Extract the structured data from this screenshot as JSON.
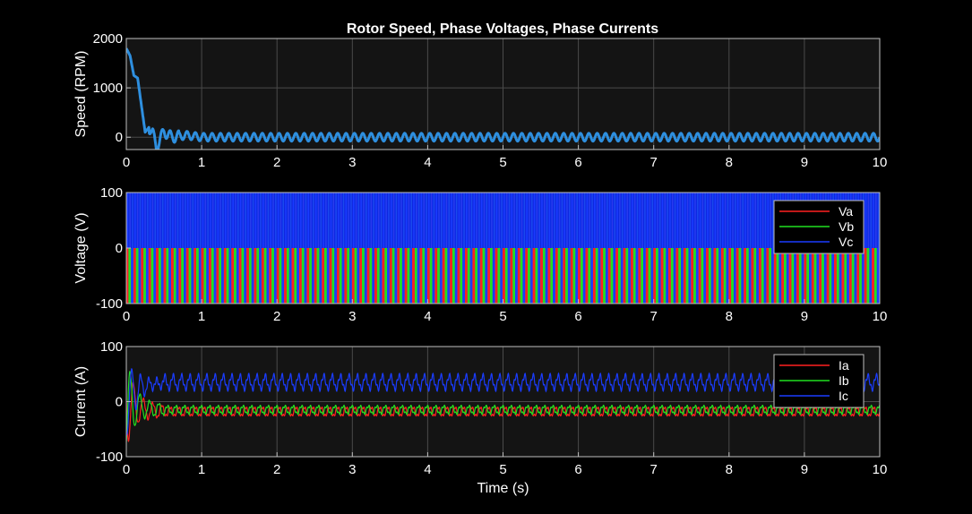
{
  "figure": {
    "title": "Rotor Speed, Phase Voltages, Phase Currents",
    "background": "#000000",
    "axes_background": "#141414",
    "axes_color": "#bfbfbf",
    "grid_color": "#4a4a4a"
  },
  "chart_data": [
    {
      "type": "line",
      "title": "Rotor Speed, Phase Voltages, Phase Currents",
      "xlabel": "",
      "ylabel": "Speed (RPM)",
      "xlim": [
        0,
        10
      ],
      "ylim": [
        -250,
        2000
      ],
      "xticks": [
        0,
        1,
        2,
        3,
        4,
        5,
        6,
        7,
        8,
        9,
        10
      ],
      "yticks": [
        0,
        1000,
        2000
      ],
      "xtick_labels": [
        "0",
        "1",
        "2",
        "3",
        "4",
        "5",
        "6",
        "7",
        "8",
        "9",
        "10"
      ],
      "ytick_labels": [
        "0",
        "1000",
        "2000"
      ],
      "grid": true,
      "legend": null,
      "series": [
        {
          "color": "#2e8fdf",
          "line_width": 3,
          "envelope": {
            "x": [
              0,
              0.05,
              0.1,
              0.15,
              0.25,
              0.3,
              0.35,
              0.4,
              0.5,
              0.6,
              0.8,
              1.0,
              10
            ],
            "y": [
              1800,
              1650,
              1250,
              1200,
              100,
              200,
              80,
              -200,
              120,
              0,
              40,
              0,
              0
            ]
          },
          "oscillation": {
            "amplitude": 80,
            "frequency_hz": 9
          }
        }
      ]
    },
    {
      "type": "line",
      "xlabel": "",
      "ylabel": "Voltage (V)",
      "xlim": [
        0,
        10
      ],
      "ylim": [
        -100,
        100
      ],
      "xticks": [
        0,
        1,
        2,
        3,
        4,
        5,
        6,
        7,
        8,
        9,
        10
      ],
      "yticks": [
        -100,
        0,
        100
      ],
      "xtick_labels": [
        "0",
        "1",
        "2",
        "3",
        "4",
        "5",
        "6",
        "7",
        "8",
        "9",
        "10"
      ],
      "ytick_labels": [
        "-100",
        "0",
        "100"
      ],
      "grid": true,
      "legend": {
        "position": "top-right"
      },
      "switching": {
        "frequency_hz": 10,
        "high": 100,
        "low": -100
      },
      "series": [
        {
          "name": "Va",
          "color": "#ff2020",
          "phase_deg": 0
        },
        {
          "name": "Vb",
          "color": "#20e020",
          "phase_deg": 120
        },
        {
          "name": "Vc",
          "color": "#1a3cff",
          "phase_deg": 240
        }
      ]
    },
    {
      "type": "line",
      "xlabel": "Time (s)",
      "ylabel": "Current (A)",
      "xlim": [
        0,
        10
      ],
      "ylim": [
        -100,
        100
      ],
      "xticks": [
        0,
        1,
        2,
        3,
        4,
        5,
        6,
        7,
        8,
        9,
        10
      ],
      "yticks": [
        -100,
        0,
        100
      ],
      "xtick_labels": [
        "0",
        "1",
        "2",
        "3",
        "4",
        "5",
        "6",
        "7",
        "8",
        "9",
        "10"
      ],
      "ytick_labels": [
        "-100",
        "0",
        "100"
      ],
      "grid": true,
      "legend": {
        "position": "top-right"
      },
      "series": [
        {
          "name": "Ia",
          "color": "#ff2020",
          "steady_mean": -18,
          "oscillation_amplitude": 8,
          "startup_peak": -85
        },
        {
          "name": "Ib",
          "color": "#20e020",
          "steady_mean": -15,
          "oscillation_amplitude": 7,
          "startup_peak": -85
        },
        {
          "name": "Ic",
          "color": "#1a3cff",
          "steady_mean": 35,
          "oscillation_amplitude": 12,
          "startup_peak": 65
        }
      ]
    }
  ]
}
